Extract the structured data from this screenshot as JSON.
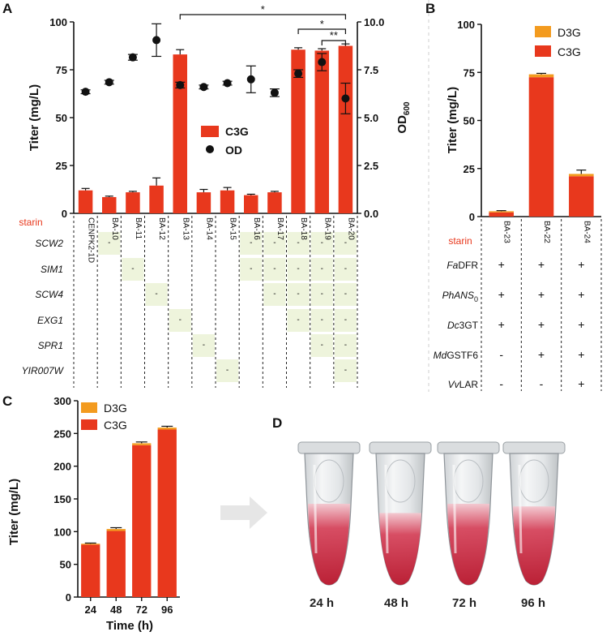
{
  "figure": {
    "colors": {
      "c3g": "#e8381d",
      "d3g": "#f39b1f",
      "marker": "#111111",
      "highlight": "#eef4dc",
      "starin_label": "#e8381d"
    }
  },
  "chart_data": [
    {
      "panel": "A",
      "type": "bar",
      "title": "",
      "ylabel": "Titer (mg/L)",
      "ylabel_right": "OD600",
      "ylabel_right_main": "OD",
      "ylabel_right_sub": "600",
      "ylim": [
        0,
        100
      ],
      "ylim_right": [
        0,
        10
      ],
      "yticks": [
        "0",
        "25",
        "50",
        "75",
        "100"
      ],
      "yticks_right": [
        "0.0",
        "2.5",
        "5.0",
        "7.5",
        "10.0"
      ],
      "categories": [
        "CENPK2-1D",
        "BA-10",
        "BA-11",
        "BA-12",
        "BA-13",
        "BA-14",
        "BA-15",
        "BA-16",
        "BA-17",
        "BA-18",
        "BA-19",
        "BA-20"
      ],
      "series": [
        {
          "name": "C3G",
          "kind": "bar",
          "values": [
            12,
            8.5,
            11,
            14.5,
            83,
            11,
            12,
            9.5,
            11,
            85.5,
            85,
            87.5
          ],
          "errors": [
            1,
            0.5,
            0.5,
            4,
            2.5,
            1.5,
            1.5,
            0.5,
            0.5,
            1,
            1,
            1
          ]
        },
        {
          "name": "OD",
          "kind": "point",
          "axis": "right",
          "values": [
            6.35,
            6.85,
            8.15,
            9.05,
            6.7,
            6.6,
            6.8,
            7.0,
            6.3,
            7.3,
            7.9,
            6.0
          ],
          "errors": [
            0.1,
            0.1,
            0.15,
            0.85,
            0.15,
            0.1,
            0.1,
            0.7,
            0.2,
            0.2,
            0.45,
            0.8
          ]
        }
      ],
      "legend": [
        "C3G",
        "OD"
      ],
      "legend_position": "center",
      "significance": [
        {
          "from": "BA-13",
          "to": "BA-20",
          "label": "*"
        },
        {
          "from": "BA-18",
          "to": "BA-20",
          "label": "*"
        },
        {
          "from": "BA-19",
          "to": "BA-20",
          "label": "**"
        }
      ],
      "table_label": "starin",
      "genes": [
        "SCW2",
        "SIM1",
        "SCW4",
        "EXG1",
        "SPR1",
        "YIR007W"
      ],
      "gene_marks": {
        "SCW2": [
          "BA-10",
          "BA-16",
          "BA-17",
          "BA-18",
          "BA-19",
          "BA-20"
        ],
        "SIM1": [
          "BA-11",
          "BA-16",
          "BA-17",
          "BA-18",
          "BA-19",
          "BA-20"
        ],
        "SCW4": [
          "BA-12",
          "BA-17",
          "BA-18",
          "BA-19",
          "BA-20"
        ],
        "EXG1": [
          "BA-13",
          "BA-18",
          "BA-19",
          "BA-20"
        ],
        "SPR1": [
          "BA-14",
          "BA-19",
          "BA-20"
        ],
        "YIR007W": [
          "BA-15",
          "BA-20"
        ]
      },
      "mark_symbol": "-"
    },
    {
      "panel": "B",
      "type": "bar",
      "stacked": true,
      "title": "",
      "ylabel": "Titer  (mg/L)",
      "ylim": [
        0,
        100
      ],
      "yticks": [
        "0",
        "25",
        "50",
        "75",
        "100"
      ],
      "categories": [
        "BA-23",
        "BA-22",
        "BA-24"
      ],
      "series": [
        {
          "name": "C3G",
          "values": [
            2.2,
            72.5,
            21
          ],
          "errors": [
            0.3,
            0.5,
            2
          ]
        },
        {
          "name": "D3G",
          "values": [
            0.6,
            1.5,
            1.2
          ]
        }
      ],
      "legend": [
        "D3G",
        "C3G"
      ],
      "legend_position": "top-right",
      "table_label": "starin",
      "genes": [
        {
          "pre": "Fa",
          "post": "DFR",
          "sub": "",
          "values": [
            "+",
            "+",
            "+"
          ]
        },
        {
          "pre": "PhANS",
          "post": "",
          "sub": "0",
          "values": [
            "+",
            "+",
            "+"
          ]
        },
        {
          "pre": "Dc",
          "post": "3GT",
          "sub": "",
          "values": [
            "+",
            "+",
            "+"
          ]
        },
        {
          "pre": "Md",
          "post": "GSTF6",
          "sub": "",
          "values": [
            "-",
            "+",
            "+"
          ]
        },
        {
          "pre": "Vv",
          "post": "LAR",
          "sub": "",
          "values": [
            "-",
            "-",
            "+"
          ]
        }
      ]
    },
    {
      "panel": "C",
      "type": "bar",
      "stacked": true,
      "title": "",
      "xlabel": "Time (h)",
      "ylabel": "Titer (mg/L)",
      "ylim": [
        0,
        300
      ],
      "yticks": [
        "0",
        "50",
        "100",
        "150",
        "200",
        "250",
        "300"
      ],
      "categories": [
        "24",
        "48",
        "72",
        "96"
      ],
      "series": [
        {
          "name": "C3G",
          "values": [
            80,
            101,
            232,
            256
          ],
          "errors": [
            1,
            2,
            2,
            2
          ]
        },
        {
          "name": "D3G",
          "values": [
            1.5,
            3,
            3,
            3
          ]
        }
      ],
      "legend": [
        "D3G",
        "C3G"
      ],
      "legend_position": "top-left"
    }
  ],
  "panelD": {
    "letter": "D",
    "labels": [
      "24 h",
      "48 h",
      "72 h",
      "96 h"
    ]
  }
}
